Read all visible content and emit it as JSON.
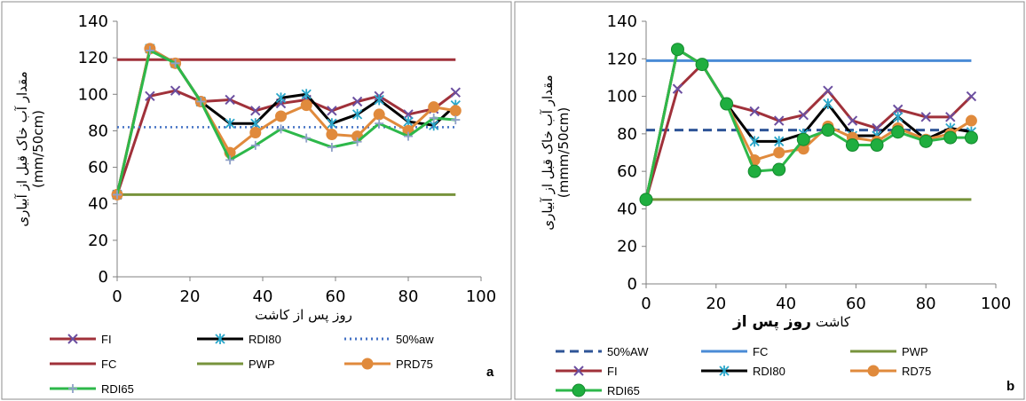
{
  "chart_data": [
    {
      "type": "line",
      "panel_label": "a",
      "ylabel_fa": "مقدار آب خاک قبل از آبیاری",
      "ylabel_unit": "(mm/50cm)",
      "xlabel_fa": "روز پس از کاشت",
      "xlim": [
        0,
        100
      ],
      "ylim": [
        0,
        140
      ],
      "xticks": [
        0,
        20,
        40,
        60,
        80,
        100
      ],
      "yticks": [
        0,
        20,
        40,
        60,
        80,
        100,
        120,
        140
      ],
      "legend_position": "bottom",
      "series": [
        {
          "name": "FI",
          "color": "#a0313a",
          "marker": "x",
          "dash": "solid",
          "x": [
            0,
            9,
            16,
            23,
            31,
            38,
            45,
            52,
            59,
            66,
            72,
            80,
            87,
            93
          ],
          "y": [
            45,
            99,
            102,
            96,
            97,
            91,
            95,
            97,
            91,
            96,
            99,
            89,
            92,
            101
          ]
        },
        {
          "name": "RDI80",
          "color": "#000000",
          "marker": "asterisk",
          "dash": "solid",
          "x": [
            0,
            9,
            16,
            23,
            31,
            38,
            45,
            52,
            59,
            66,
            72,
            80,
            87,
            93
          ],
          "y": [
            45,
            125,
            117,
            96,
            84,
            84,
            98,
            100,
            84,
            89,
            97,
            85,
            83,
            94
          ]
        },
        {
          "name": "50%aw",
          "color": "#4472c4",
          "marker": "none",
          "dash": "dotted",
          "x": [
            0,
            93
          ],
          "y": [
            82,
            82
          ]
        },
        {
          "name": "FC",
          "color": "#a0313a",
          "marker": "none",
          "dash": "solid",
          "x": [
            0,
            93
          ],
          "y": [
            119,
            119
          ]
        },
        {
          "name": "PWP",
          "color": "#77933c",
          "marker": "none",
          "dash": "solid",
          "x": [
            0,
            93
          ],
          "y": [
            45,
            45
          ]
        },
        {
          "name": "PRD75",
          "color": "#e08a3c",
          "marker": "circle",
          "dash": "solid",
          "x": [
            0,
            9,
            16,
            23,
            31,
            38,
            45,
            52,
            59,
            66,
            72,
            80,
            87,
            93
          ],
          "y": [
            45,
            125,
            117,
            96,
            68,
            79,
            88,
            94,
            78,
            77,
            89,
            80,
            93,
            91
          ]
        },
        {
          "name": "RDI65",
          "color": "#2db84a",
          "marker": "plus",
          "dash": "solid",
          "x": [
            0,
            9,
            16,
            23,
            31,
            38,
            45,
            52,
            59,
            66,
            72,
            80,
            87,
            93
          ],
          "y": [
            45,
            124,
            117,
            96,
            64,
            72,
            81,
            76,
            71,
            74,
            84,
            77,
            87,
            86
          ]
        }
      ]
    },
    {
      "type": "line",
      "panel_label": "b",
      "ylabel_fa": "مقدار آب خاک قبل از آبیاری",
      "ylabel_unit": "(mmm/50cm)",
      "xlabel_fa_bold": "روز پس از",
      "xlabel_fa": "کاشت",
      "xlim": [
        0,
        100
      ],
      "ylim": [
        0,
        140
      ],
      "xticks": [
        0,
        20,
        40,
        60,
        80,
        100
      ],
      "yticks": [
        0,
        20,
        40,
        60,
        80,
        100,
        120,
        140
      ],
      "legend_position": "bottom",
      "series": [
        {
          "name": "50%AW",
          "color": "#2f5597",
          "marker": "none",
          "dash": "dashed",
          "x": [
            0,
            93
          ],
          "y": [
            82,
            82
          ]
        },
        {
          "name": "FC",
          "color": "#4a8bd6",
          "marker": "none",
          "dash": "solid",
          "x": [
            0,
            93
          ],
          "y": [
            119,
            119
          ]
        },
        {
          "name": "PWP",
          "color": "#77933c",
          "marker": "none",
          "dash": "solid",
          "x": [
            0,
            93
          ],
          "y": [
            45,
            45
          ]
        },
        {
          "name": "FI",
          "color": "#a0313a",
          "marker": "x",
          "dash": "solid",
          "x": [
            0,
            9,
            16,
            23,
            31,
            38,
            45,
            52,
            59,
            66,
            72,
            80,
            87,
            93
          ],
          "y": [
            45,
            104,
            117,
            96,
            92,
            87,
            90,
            103,
            87,
            83,
            93,
            89,
            89,
            100
          ]
        },
        {
          "name": "RDI80",
          "color": "#000000",
          "marker": "asterisk",
          "dash": "solid",
          "x": [
            0,
            9,
            16,
            23,
            31,
            38,
            45,
            52,
            59,
            66,
            72,
            80,
            87,
            93
          ],
          "y": [
            45,
            125,
            117,
            96,
            76,
            76,
            80,
            96,
            79,
            79,
            89,
            77,
            83,
            81
          ]
        },
        {
          "name": "RD75",
          "color": "#e08a3c",
          "marker": "circle",
          "dash": "solid",
          "x": [
            0,
            9,
            16,
            23,
            31,
            38,
            45,
            52,
            59,
            66,
            72,
            80,
            87,
            93
          ],
          "y": [
            45,
            125,
            117,
            96,
            66,
            70,
            72,
            84,
            78,
            76,
            83,
            77,
            80,
            87
          ]
        },
        {
          "name": "RDI65",
          "color": "#2db84a",
          "marker": "bigcircle",
          "dash": "solid",
          "x": [
            0,
            9,
            16,
            23,
            31,
            38,
            45,
            52,
            59,
            66,
            72,
            80,
            87,
            93
          ],
          "y": [
            45,
            125,
            117,
            96,
            60,
            61,
            77,
            82,
            74,
            74,
            81,
            76,
            78,
            78
          ]
        }
      ]
    }
  ]
}
